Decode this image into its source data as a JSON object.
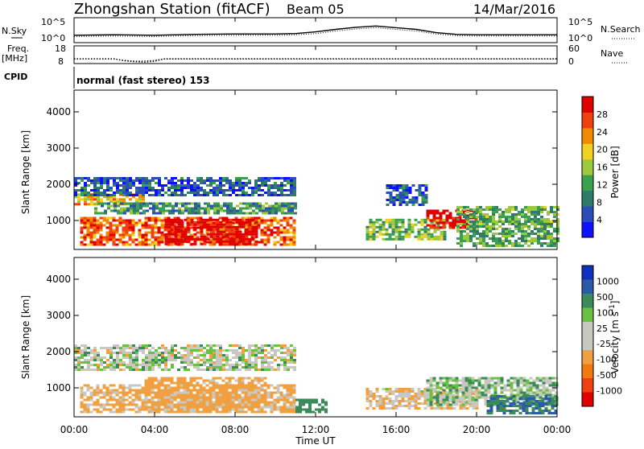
{
  "header": {
    "station": "Zhongshan Station (fitACF)",
    "beam": "Beam 05",
    "date": "14/Mar/2016"
  },
  "labels": {
    "nsky": "N.Sky",
    "nsearch": "N.Search",
    "freq_line1": "Freq.",
    "freq_line2": "[MHz]",
    "nave": "Nave",
    "cpid": "CPID",
    "cpid_value": "normal (fast stereo) 153",
    "noise_top_left": "10^5",
    "noise_bottom_left": "10^0",
    "noise_top_right": "10^5",
    "noise_bottom_right": "10^0",
    "freq_top": "18",
    "freq_bottom": "8",
    "nave_top": "60",
    "nave_bottom": "0"
  },
  "colors": {
    "power_scale": [
      "#1010ff",
      "#2a4db8",
      "#2f7a6a",
      "#3aa050",
      "#9cc83c",
      "#f0d020",
      "#f08a00",
      "#f04010",
      "#e00000"
    ],
    "velocity_scale": [
      "#e00000",
      "#f04010",
      "#f07a10",
      "#f0a040",
      "#c8c8c0",
      "#c8c8c0",
      "#6ac040",
      "#3a8a5a",
      "#2a5aa8",
      "#1030c0"
    ]
  },
  "chart_data": [
    {
      "type": "line",
      "name": "noise-panel",
      "x_range_hours": [
        0,
        24
      ],
      "series": [
        {
          "name": "N.Sky",
          "x": [
            0,
            2,
            4,
            6,
            8,
            10,
            11,
            12,
            13,
            14,
            15,
            16,
            17,
            18,
            19,
            20,
            22,
            24
          ],
          "values": [
            1.2,
            1.3,
            1.2,
            1.4,
            1.5,
            1.5,
            1.6,
            2.0,
            2.6,
            3.1,
            3.4,
            3.0,
            2.6,
            1.8,
            1.4,
            1.3,
            1.3,
            1.3
          ]
        },
        {
          "name": "N.Search",
          "x": [
            0,
            2,
            4,
            6,
            8,
            10,
            11,
            12,
            13,
            14,
            15,
            16,
            17,
            18,
            19,
            20,
            22,
            24
          ],
          "values": [
            0.9,
            1.0,
            0.9,
            1.1,
            1.2,
            1.2,
            1.3,
            1.6,
            2.2,
            2.7,
            3.0,
            2.6,
            2.2,
            1.5,
            1.1,
            1.0,
            1.0,
            1.0
          ]
        }
      ]
    },
    {
      "type": "line",
      "name": "frequency-nave-panel",
      "x_range_hours": [
        0,
        24
      ],
      "series": [
        {
          "name": "Freq.",
          "x": [
            0,
            2,
            2.5,
            3,
            3.5,
            4,
            4.5,
            24
          ],
          "values": [
            10.5,
            10.5,
            9.2,
            8.6,
            8.3,
            8.9,
            10.5,
            10.5
          ]
        },
        {
          "name": "Nave",
          "x": [
            0,
            2,
            2.5,
            3,
            3.5,
            4,
            4.5,
            24
          ],
          "values": [
            14,
            14,
            9,
            6,
            6,
            9,
            14,
            14
          ]
        }
      ]
    },
    {
      "type": "heatmap",
      "name": "power",
      "ylabel": "Slant Range [km]",
      "xlabel": "Time UT",
      "x_ticks": [
        "00:00",
        "04:00",
        "08:00",
        "12:00",
        "16:00",
        "20:00",
        "00:00"
      ],
      "y_ticks": [
        1000,
        2000,
        3000,
        4000
      ],
      "ylim": [
        200,
        4600
      ],
      "colorbar_label": "Power [dB]",
      "colorbar_ticks": [
        4,
        8,
        12,
        16,
        20,
        24,
        28
      ],
      "regions": [
        {
          "x": [
            0.3,
            11
          ],
          "y": [
            300,
            1100
          ],
          "value": 24
        },
        {
          "x": [
            4.5,
            9
          ],
          "y": [
            350,
            1050
          ],
          "value": 30
        },
        {
          "x": [
            0,
            3.5
          ],
          "y": [
            1450,
            1750
          ],
          "value": 20
        },
        {
          "x": [
            1,
            11
          ],
          "y": [
            1200,
            1500
          ],
          "value": 10
        },
        {
          "x": [
            0,
            11
          ],
          "y": [
            1700,
            2200
          ],
          "value": 6
        },
        {
          "x": [
            14.5,
            18.5
          ],
          "y": [
            500,
            1050
          ],
          "value": 14
        },
        {
          "x": [
            17.5,
            20
          ],
          "y": [
            800,
            1300
          ],
          "value": 30
        },
        {
          "x": [
            19,
            24
          ],
          "y": [
            300,
            1400
          ],
          "value": 12
        },
        {
          "x": [
            15.5,
            17.5
          ],
          "y": [
            1400,
            2000
          ],
          "value": 6
        }
      ]
    },
    {
      "type": "heatmap",
      "name": "velocity",
      "ylabel": "Slant Range [km]",
      "xlabel": "Time UT",
      "x_ticks": [
        "00:00",
        "04:00",
        "08:00",
        "12:00",
        "16:00",
        "20:00",
        "00:00"
      ],
      "y_ticks": [
        1000,
        2000,
        3000,
        4000
      ],
      "ylim": [
        200,
        4600
      ],
      "colorbar_label": "Velocity [m s^-1]",
      "colorbar_ticks": [
        "1000",
        "500",
        "100",
        "25",
        "-25",
        "-100",
        "-500",
        "-1000"
      ],
      "regions": [
        {
          "x": [
            0,
            11
          ],
          "y": [
            1500,
            2200
          ],
          "value": 0
        },
        {
          "x": [
            0.3,
            11
          ],
          "y": [
            300,
            1100
          ],
          "value": -150
        },
        {
          "x": [
            3.5,
            9.5
          ],
          "y": [
            350,
            1300
          ],
          "value": -200
        },
        {
          "x": [
            11,
            12.5
          ],
          "y": [
            300,
            700
          ],
          "value": 300
        },
        {
          "x": [
            14.5,
            20
          ],
          "y": [
            400,
            1000
          ],
          "value": -100
        },
        {
          "x": [
            17.5,
            24
          ],
          "y": [
            500,
            1300
          ],
          "value": 50
        },
        {
          "x": [
            20.5,
            24
          ],
          "y": [
            300,
            800
          ],
          "value": 500
        }
      ]
    }
  ]
}
